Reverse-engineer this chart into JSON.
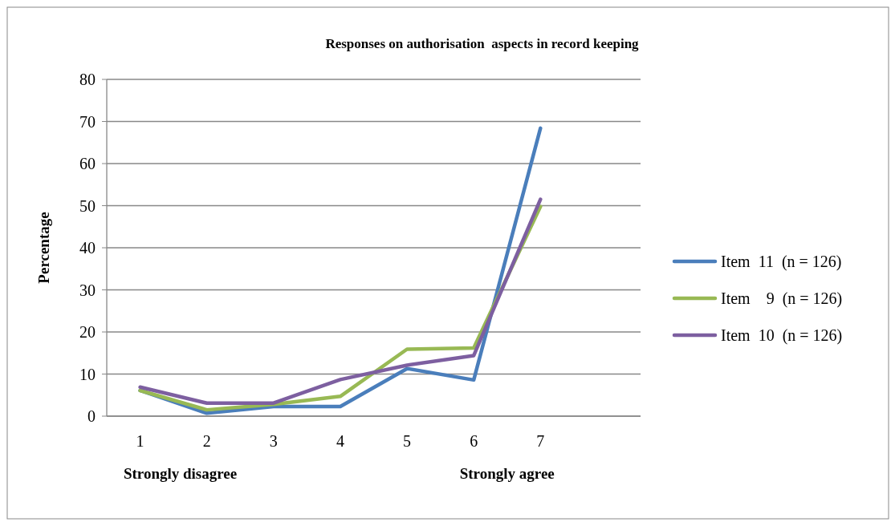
{
  "chart_data": {
    "type": "line",
    "title": "Responses on authorisation  aspects in record keeping",
    "ylabel": "Percentage",
    "categories": [
      "1",
      "2",
      "3",
      "4",
      "5",
      "6",
      "7",
      null
    ],
    "series": [
      {
        "name": "Item  11  (n = 126)",
        "color": "#4a7ebb",
        "values": [
          6.1,
          0.7,
          2.3,
          2.3,
          11.3,
          8.6,
          68.4,
          null
        ]
      },
      {
        "name": "Item    9  (n = 126)",
        "color": "#98b954",
        "values": [
          6.1,
          1.5,
          2.8,
          4.7,
          15.9,
          16.2,
          49.8,
          null
        ]
      },
      {
        "name": "Item  10  (n = 126)",
        "color": "#7d5fa0",
        "values": [
          6.9,
          3.1,
          3.1,
          8.7,
          12.1,
          14.4,
          51.5,
          null
        ]
      }
    ],
    "ylim": [
      0,
      80
    ],
    "yticks": [
      0,
      10,
      20,
      30,
      40,
      50,
      60,
      70,
      80
    ],
    "grid": "y",
    "legend": "right",
    "marker": "none",
    "line_style": "solid",
    "annotations": [
      "Strongly disagree",
      "Strongly agree"
    ]
  }
}
